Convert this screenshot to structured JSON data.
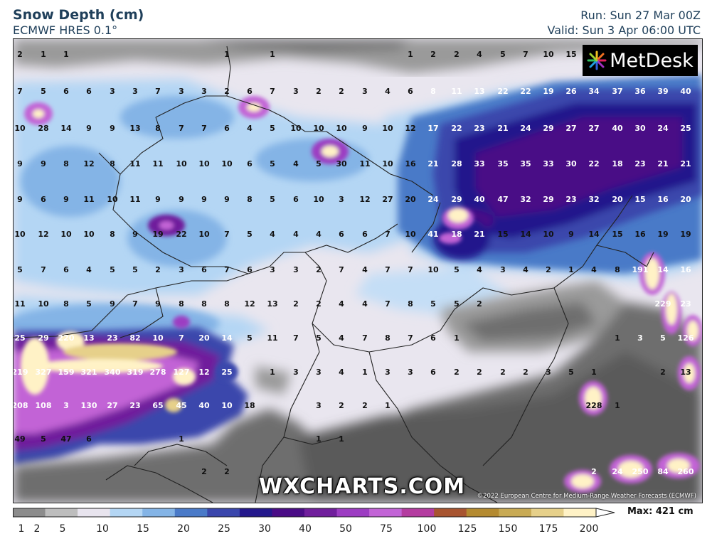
{
  "header": {
    "title": "Snow Depth (cm)",
    "subtitle": "ECMWF HRES 0.1°",
    "run": "Run: Sun 27 Mar 00Z",
    "valid": "Valid: Sun 3 Apr 06:00 UTC"
  },
  "branding": {
    "logo_text": "MetDesk",
    "watermark": "WXCHARTS.COM",
    "copyright": "©2022 European Centre for Medium-Range Weather Forecasts (ECMWF)"
  },
  "legend": {
    "labels": [
      "1",
      "2",
      "5",
      "10",
      "15",
      "20",
      "25",
      "30",
      "40",
      "50",
      "75",
      "100",
      "125",
      "150",
      "175",
      "200"
    ],
    "max_label": "Max: 421 cm",
    "colors": [
      "#8c8c8c",
      "#bdbdbd",
      "#e8e4ee",
      "#b4d6f4",
      "#84b4e6",
      "#4a7ac8",
      "#3a46ac",
      "#24188c",
      "#4a0c86",
      "#701e9c",
      "#9c3cc2",
      "#c264d6",
      "#b43ca0",
      "#a85430",
      "#b48a30",
      "#c8aa54",
      "#e6d08a",
      "#fff2c6"
    ]
  },
  "map_values": {
    "rows": [
      {
        "y": 75,
        "items": [
          [
            27,
            "2"
          ],
          [
            60,
            "1"
          ],
          [
            92,
            "1"
          ],
          [
            318,
            "1"
          ],
          [
            382,
            "1"
          ],
          [
            576,
            "1"
          ],
          [
            608,
            "2"
          ],
          [
            641,
            "2"
          ],
          [
            673,
            "4"
          ],
          [
            706,
            "5"
          ],
          [
            738,
            "7"
          ],
          [
            770,
            "10"
          ],
          [
            802,
            "15"
          ]
        ]
      },
      {
        "y": 127,
        "items": [
          [
            27,
            "7"
          ],
          [
            60,
            "5"
          ],
          [
            92,
            "6"
          ],
          [
            124,
            "6"
          ],
          [
            157,
            "3"
          ],
          [
            189,
            "3"
          ],
          [
            221,
            "7"
          ],
          [
            254,
            "3"
          ],
          [
            286,
            "3"
          ],
          [
            318,
            "2"
          ],
          [
            350,
            "6"
          ],
          [
            382,
            "7"
          ],
          [
            415,
            "3"
          ],
          [
            447,
            "2"
          ],
          [
            479,
            "2"
          ],
          [
            512,
            "3"
          ],
          [
            544,
            "4"
          ],
          [
            576,
            "6"
          ],
          [
            608,
            "8"
          ],
          [
            641,
            "11"
          ],
          [
            673,
            "13"
          ],
          [
            706,
            "22"
          ],
          [
            738,
            "22"
          ],
          [
            770,
            "19"
          ],
          [
            802,
            "26"
          ],
          [
            834,
            "34"
          ],
          [
            867,
            "37"
          ],
          [
            899,
            "36"
          ],
          [
            931,
            "39"
          ],
          [
            963,
            "40"
          ]
        ]
      },
      {
        "y": 179,
        "items": [
          [
            27,
            "10"
          ],
          [
            60,
            "28"
          ],
          [
            92,
            "14"
          ],
          [
            124,
            "9"
          ],
          [
            157,
            "9"
          ],
          [
            189,
            "13"
          ],
          [
            221,
            "8"
          ],
          [
            254,
            "7"
          ],
          [
            286,
            "7"
          ],
          [
            318,
            "6"
          ],
          [
            350,
            "4"
          ],
          [
            382,
            "5"
          ],
          [
            415,
            "10"
          ],
          [
            447,
            "10"
          ],
          [
            479,
            "10"
          ],
          [
            512,
            "9"
          ],
          [
            544,
            "10"
          ],
          [
            576,
            "12"
          ],
          [
            608,
            "17"
          ],
          [
            641,
            "22"
          ],
          [
            673,
            "23"
          ],
          [
            706,
            "21"
          ],
          [
            738,
            "24"
          ],
          [
            770,
            "29"
          ],
          [
            802,
            "27"
          ],
          [
            834,
            "27"
          ],
          [
            867,
            "40"
          ],
          [
            899,
            "30"
          ],
          [
            931,
            "24"
          ],
          [
            963,
            "25"
          ]
        ]
      },
      {
        "y": 229,
        "items": [
          [
            27,
            "9"
          ],
          [
            60,
            "9"
          ],
          [
            92,
            "8"
          ],
          [
            124,
            "12"
          ],
          [
            157,
            "8"
          ],
          [
            189,
            "11"
          ],
          [
            221,
            "11"
          ],
          [
            254,
            "10"
          ],
          [
            286,
            "10"
          ],
          [
            318,
            "10"
          ],
          [
            350,
            "6"
          ],
          [
            382,
            "5"
          ],
          [
            415,
            "4"
          ],
          [
            447,
            "5"
          ],
          [
            479,
            "30"
          ],
          [
            512,
            "11"
          ],
          [
            544,
            "10"
          ],
          [
            576,
            "16"
          ],
          [
            608,
            "21"
          ],
          [
            641,
            "28"
          ],
          [
            673,
            "33"
          ],
          [
            706,
            "35"
          ],
          [
            738,
            "35"
          ],
          [
            770,
            "33"
          ],
          [
            802,
            "30"
          ],
          [
            834,
            "22"
          ],
          [
            867,
            "18"
          ],
          [
            899,
            "23"
          ],
          [
            931,
            "21"
          ],
          [
            963,
            "21"
          ]
        ]
      },
      {
        "y": 279,
        "items": [
          [
            27,
            "9"
          ],
          [
            60,
            "6"
          ],
          [
            92,
            "9"
          ],
          [
            124,
            "11"
          ],
          [
            157,
            "10"
          ],
          [
            189,
            "11"
          ],
          [
            221,
            "9"
          ],
          [
            254,
            "9"
          ],
          [
            286,
            "9"
          ],
          [
            318,
            "9"
          ],
          [
            350,
            "8"
          ],
          [
            382,
            "5"
          ],
          [
            415,
            "6"
          ],
          [
            447,
            "10"
          ],
          [
            479,
            "3"
          ],
          [
            512,
            "12"
          ],
          [
            544,
            "27"
          ],
          [
            576,
            "20"
          ],
          [
            608,
            "24"
          ],
          [
            641,
            "29"
          ],
          [
            673,
            "40"
          ],
          [
            706,
            "47"
          ],
          [
            738,
            "32"
          ],
          [
            770,
            "29"
          ],
          [
            802,
            "23"
          ],
          [
            834,
            "32"
          ],
          [
            867,
            "20"
          ],
          [
            899,
            "15"
          ],
          [
            931,
            "16"
          ],
          [
            963,
            "20"
          ]
        ]
      },
      {
        "y": 328,
        "items": [
          [
            27,
            "10"
          ],
          [
            60,
            "12"
          ],
          [
            92,
            "10"
          ],
          [
            124,
            "10"
          ],
          [
            157,
            "8"
          ],
          [
            189,
            "9"
          ],
          [
            221,
            "19"
          ],
          [
            254,
            "22"
          ],
          [
            286,
            "10"
          ],
          [
            318,
            "7"
          ],
          [
            350,
            "5"
          ],
          [
            382,
            "4"
          ],
          [
            415,
            "4"
          ],
          [
            447,
            "4"
          ],
          [
            479,
            "6"
          ],
          [
            512,
            "6"
          ],
          [
            544,
            "7"
          ],
          [
            576,
            "10"
          ],
          [
            608,
            "41"
          ],
          [
            641,
            "18"
          ],
          [
            673,
            "21"
          ],
          [
            706,
            "15"
          ],
          [
            738,
            "14"
          ],
          [
            770,
            "10"
          ],
          [
            802,
            "9"
          ],
          [
            834,
            "14"
          ],
          [
            867,
            "15"
          ],
          [
            899,
            "16"
          ],
          [
            931,
            "19"
          ],
          [
            963,
            "19"
          ]
        ]
      },
      {
        "y": 378,
        "items": [
          [
            27,
            "5"
          ],
          [
            60,
            "7"
          ],
          [
            92,
            "6"
          ],
          [
            124,
            "4"
          ],
          [
            157,
            "5"
          ],
          [
            189,
            "5"
          ],
          [
            221,
            "2"
          ],
          [
            254,
            "3"
          ],
          [
            286,
            "6"
          ],
          [
            318,
            "7"
          ],
          [
            350,
            "6"
          ],
          [
            382,
            "3"
          ],
          [
            415,
            "3"
          ],
          [
            447,
            "2"
          ],
          [
            479,
            "7"
          ],
          [
            512,
            "4"
          ],
          [
            544,
            "7"
          ],
          [
            576,
            "7"
          ],
          [
            608,
            "10"
          ],
          [
            641,
            "5"
          ],
          [
            673,
            "4"
          ],
          [
            706,
            "3"
          ],
          [
            738,
            "4"
          ],
          [
            770,
            "2"
          ],
          [
            802,
            "1"
          ],
          [
            834,
            "4"
          ],
          [
            867,
            "8"
          ],
          [
            899,
            "191"
          ],
          [
            931,
            "14"
          ],
          [
            963,
            "16"
          ]
        ]
      },
      {
        "y": 426,
        "items": [
          [
            27,
            "11"
          ],
          [
            60,
            "10"
          ],
          [
            92,
            "8"
          ],
          [
            124,
            "5"
          ],
          [
            157,
            "9"
          ],
          [
            189,
            "7"
          ],
          [
            221,
            "9"
          ],
          [
            254,
            "8"
          ],
          [
            286,
            "8"
          ],
          [
            318,
            "8"
          ],
          [
            350,
            "12"
          ],
          [
            382,
            "13"
          ],
          [
            415,
            "2"
          ],
          [
            447,
            "2"
          ],
          [
            479,
            "4"
          ],
          [
            512,
            "4"
          ],
          [
            544,
            "7"
          ],
          [
            576,
            "8"
          ],
          [
            608,
            "5"
          ],
          [
            641,
            "5"
          ],
          [
            673,
            "2"
          ],
          [
            931,
            "229"
          ],
          [
            963,
            "23"
          ]
        ]
      },
      {
        "y": 474,
        "items": [
          [
            27,
            "25"
          ],
          [
            60,
            "29"
          ],
          [
            92,
            "220"
          ],
          [
            124,
            "13"
          ],
          [
            157,
            "23"
          ],
          [
            189,
            "82"
          ],
          [
            221,
            "10"
          ],
          [
            254,
            "7"
          ],
          [
            286,
            "20"
          ],
          [
            318,
            "14"
          ],
          [
            350,
            "5"
          ],
          [
            382,
            "11"
          ],
          [
            415,
            "7"
          ],
          [
            447,
            "5"
          ],
          [
            479,
            "4"
          ],
          [
            512,
            "7"
          ],
          [
            544,
            "8"
          ],
          [
            576,
            "7"
          ],
          [
            608,
            "6"
          ],
          [
            641,
            "1"
          ],
          [
            867,
            "1"
          ],
          [
            899,
            "3"
          ],
          [
            931,
            "5"
          ],
          [
            963,
            "126"
          ]
        ]
      },
      {
        "y": 522,
        "items": [
          [
            27,
            "219"
          ],
          [
            60,
            "327"
          ],
          [
            92,
            "159"
          ],
          [
            124,
            "321"
          ],
          [
            157,
            "340"
          ],
          [
            189,
            "319"
          ],
          [
            221,
            "278"
          ],
          [
            254,
            "127"
          ],
          [
            286,
            "12"
          ],
          [
            318,
            "25"
          ],
          [
            382,
            "1"
          ],
          [
            415,
            "3"
          ],
          [
            447,
            "3"
          ],
          [
            479,
            "4"
          ],
          [
            512,
            "1"
          ],
          [
            544,
            "3"
          ],
          [
            576,
            "3"
          ],
          [
            608,
            "6"
          ],
          [
            641,
            "2"
          ],
          [
            673,
            "2"
          ],
          [
            706,
            "2"
          ],
          [
            738,
            "2"
          ],
          [
            770,
            "3"
          ],
          [
            802,
            "5"
          ],
          [
            834,
            "1"
          ],
          [
            931,
            "2"
          ],
          [
            963,
            "13"
          ]
        ]
      },
      {
        "y": 569,
        "items": [
          [
            27,
            "208"
          ],
          [
            60,
            "108"
          ],
          [
            92,
            "3"
          ],
          [
            124,
            "130"
          ],
          [
            157,
            "27"
          ],
          [
            189,
            "23"
          ],
          [
            221,
            "65"
          ],
          [
            254,
            "45"
          ],
          [
            286,
            "40"
          ],
          [
            318,
            "10"
          ],
          [
            350,
            "18"
          ],
          [
            447,
            "3"
          ],
          [
            479,
            "2"
          ],
          [
            512,
            "2"
          ],
          [
            544,
            "1"
          ],
          [
            834,
            "228"
          ],
          [
            867,
            "1"
          ]
        ]
      },
      {
        "y": 616,
        "items": [
          [
            27,
            "49"
          ],
          [
            60,
            "5"
          ],
          [
            92,
            "47"
          ],
          [
            124,
            "6"
          ],
          [
            254,
            "1"
          ],
          [
            447,
            "1"
          ],
          [
            479,
            "1"
          ]
        ]
      },
      {
        "y": 662,
        "items": [
          [
            286,
            "2"
          ],
          [
            318,
            "2"
          ],
          [
            834,
            "2"
          ],
          [
            867,
            "24"
          ],
          [
            899,
            "250"
          ],
          [
            931,
            "84"
          ],
          [
            963,
            "260"
          ]
        ]
      }
    ]
  }
}
